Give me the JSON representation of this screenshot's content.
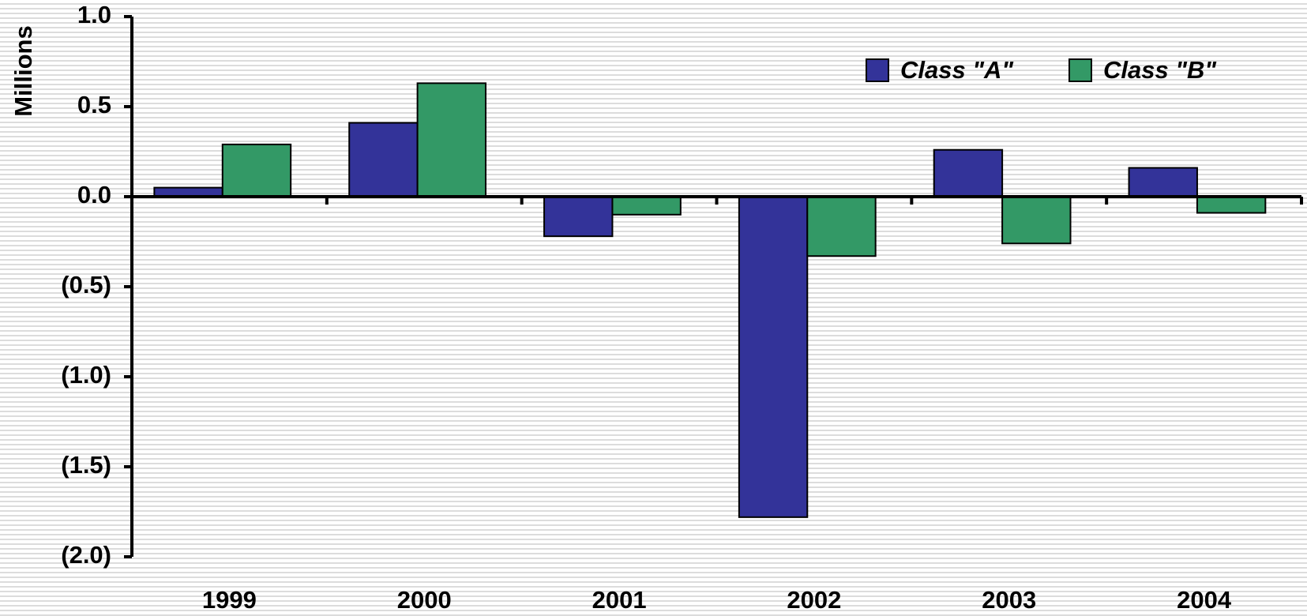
{
  "chart_data": {
    "type": "bar",
    "y_label": "Millions",
    "categories": [
      "1999",
      "2000",
      "2001",
      "2002",
      "2003",
      "2004"
    ],
    "series": [
      {
        "name": "Class \"A\"",
        "color": "#333399",
        "values": [
          0.05,
          0.41,
          -0.22,
          -1.78,
          0.26,
          0.16
        ]
      },
      {
        "name": "Class \"B\"",
        "color": "#339966",
        "values": [
          0.29,
          0.63,
          -0.1,
          -0.33,
          -0.26,
          -0.09
        ]
      }
    ],
    "ylim": [
      -2.0,
      1.0
    ],
    "yticks": [
      {
        "value": 1.0,
        "label": "1.0"
      },
      {
        "value": 0.5,
        "label": "0.5"
      },
      {
        "value": 0.0,
        "label": "0.0"
      },
      {
        "value": -0.5,
        "label": "(0.5)"
      },
      {
        "value": -1.0,
        "label": "(1.0)"
      },
      {
        "value": -1.5,
        "label": "(1.5)"
      },
      {
        "value": -2.0,
        "label": "(2.0)"
      }
    ],
    "legend": "upper right"
  }
}
